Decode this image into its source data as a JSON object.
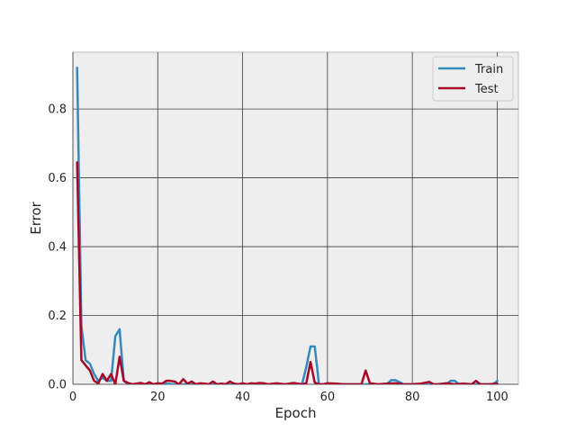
{
  "chart_data": {
    "type": "line",
    "title": "",
    "xlabel": "Epoch",
    "ylabel": "Error",
    "xlim": [
      0,
      105
    ],
    "ylim": [
      0,
      0.965
    ],
    "xticks": [
      0,
      20,
      40,
      60,
      80,
      100
    ],
    "yticks": [
      0.0,
      0.2,
      0.4,
      0.6,
      0.8
    ],
    "xtick_labels": [
      "0",
      "20",
      "40",
      "60",
      "80",
      "100"
    ],
    "ytick_labels": [
      "0.0",
      "0.2",
      "0.4",
      "0.6",
      "0.8"
    ],
    "grid": true,
    "legend_position": "top-right",
    "series": [
      {
        "name": "Train",
        "color": "#348abd",
        "x": [
          1,
          2,
          3,
          4,
          5,
          6,
          7,
          8,
          9,
          10,
          11,
          12,
          13,
          14,
          15,
          16,
          17,
          18,
          19,
          20,
          21,
          22,
          23,
          24,
          25,
          26,
          27,
          28,
          29,
          30,
          32,
          34,
          36,
          38,
          40,
          42,
          44,
          46,
          48,
          50,
          52,
          54,
          55,
          56,
          57,
          58,
          60,
          62,
          64,
          66,
          68,
          70,
          72,
          74,
          75,
          76,
          78,
          80,
          82,
          84,
          86,
          88,
          89,
          90,
          91,
          92,
          94,
          96,
          98,
          99,
          100
        ],
        "values": [
          0.92,
          0.17,
          0.07,
          0.06,
          0.03,
          0.01,
          0.02,
          0.01,
          0.01,
          0.14,
          0.16,
          0.01,
          0.0,
          0.0,
          0.0,
          0.0,
          0.0,
          0.0,
          0.0,
          0.0,
          0.0,
          0.002,
          0.001,
          0.0,
          0.0,
          0.0,
          0.0,
          0.0,
          0.0,
          0.0,
          0.0,
          0.0,
          0.0,
          0.0,
          0.0,
          0.0,
          0.0,
          0.0,
          0.0,
          0.0,
          0.0,
          0.0,
          0.05,
          0.11,
          0.11,
          0.0,
          0.0,
          0.0,
          0.0,
          0.0,
          0.0,
          0.0,
          0.0,
          0.0,
          0.012,
          0.012,
          0.0,
          0.0,
          0.0,
          0.0,
          0.0,
          0.0,
          0.01,
          0.01,
          0.0,
          0.0,
          0.0,
          0.0,
          0.0,
          0.0,
          0.01
        ]
      },
      {
        "name": "Test",
        "color": "#a60628",
        "x": [
          1,
          2,
          3,
          4,
          5,
          6,
          7,
          8,
          9,
          10,
          11,
          12,
          13,
          14,
          15,
          16,
          17,
          18,
          19,
          20,
          21,
          22,
          23,
          24,
          25,
          26,
          27,
          28,
          29,
          30,
          31,
          32,
          33,
          34,
          35,
          36,
          37,
          38,
          39,
          40,
          41,
          42,
          43,
          44,
          45,
          46,
          48,
          50,
          52,
          54,
          55,
          56,
          57,
          58,
          59,
          60,
          62,
          64,
          66,
          68,
          69,
          70,
          72,
          74,
          76,
          78,
          80,
          82,
          84,
          85,
          86,
          88,
          90,
          92,
          94,
          95,
          96,
          98,
          100
        ],
        "values": [
          0.645,
          0.07,
          0.055,
          0.04,
          0.01,
          0.003,
          0.03,
          0.01,
          0.03,
          0.0,
          0.08,
          0.01,
          0.004,
          0.0,
          0.002,
          0.004,
          0.0,
          0.006,
          0.0,
          0.003,
          0.002,
          0.01,
          0.01,
          0.008,
          0.0,
          0.015,
          0.002,
          0.008,
          0.0,
          0.003,
          0.002,
          0.0,
          0.008,
          0.0,
          0.002,
          0.0,
          0.008,
          0.002,
          0.0,
          0.003,
          0.0,
          0.003,
          0.002,
          0.004,
          0.003,
          0.0,
          0.003,
          0.0,
          0.004,
          0.0,
          0.003,
          0.065,
          0.005,
          0.0,
          0.0,
          0.003,
          0.002,
          0.0,
          0.0,
          0.0,
          0.04,
          0.003,
          0.0,
          0.002,
          0.003,
          0.0,
          0.0,
          0.002,
          0.007,
          0.0,
          0.0,
          0.003,
          0.0,
          0.002,
          0.0,
          0.01,
          0.0,
          0.0,
          0.002
        ]
      }
    ]
  }
}
